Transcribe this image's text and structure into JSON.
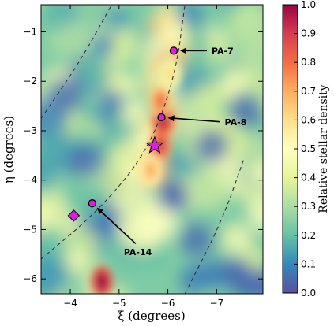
{
  "chart_data": {
    "type": "heatmap",
    "xlabel": "ξ (degrees)",
    "ylabel": "η (degrees)",
    "xlim": [
      -3.4,
      -7.95
    ],
    "ylim": [
      -6.3,
      -0.45
    ],
    "xticks": [
      -4,
      -5,
      -6,
      -7
    ],
    "yticks": [
      -1,
      -2,
      -3,
      -4,
      -5,
      -6
    ],
    "colorbar": {
      "label": "Relative stellar density",
      "range": [
        0.0,
        1.0
      ],
      "ticks": [
        0.0,
        0.1,
        0.2,
        0.3,
        0.4,
        0.5,
        0.6,
        0.7,
        0.8,
        0.9,
        1.0
      ],
      "colormap": "Spectral_r",
      "colors": [
        "#5e4fa2",
        "#3288bd",
        "#66c2a5",
        "#abdda4",
        "#e6f598",
        "#ffffbf",
        "#fee08b",
        "#fdae61",
        "#f46d43",
        "#d53e4f",
        "#9e0142"
      ]
    },
    "density_features": [
      {
        "xi": -5.85,
        "eta": -3.3,
        "value": 0.9
      },
      {
        "xi": -5.9,
        "eta": -2.8,
        "value": 0.95
      },
      {
        "xi": -5.85,
        "eta": -2.4,
        "value": 0.8
      },
      {
        "xi": -5.65,
        "eta": -3.8,
        "value": 0.7
      },
      {
        "xi": -4.65,
        "eta": -6.05,
        "value": 1.0
      },
      {
        "xi": -6.05,
        "eta": -1.85,
        "value": 0.6
      }
    ],
    "markers": [
      {
        "label": "PA-7",
        "type": "circle",
        "xi": -6.12,
        "eta": -1.38,
        "color": "#e41ae4"
      },
      {
        "label": "PA-8",
        "type": "circle",
        "xi": -5.87,
        "eta": -2.73,
        "color": "#e41ae4"
      },
      {
        "label": "PA-14",
        "type": "circle",
        "xi": -4.45,
        "eta": -4.47,
        "color": "#e41ae4"
      },
      {
        "type": "star",
        "xi": -5.73,
        "eta": -3.3,
        "color": "#e41ae4"
      },
      {
        "type": "diamond",
        "xi": -4.07,
        "eta": -4.72,
        "color": "#e41ae4"
      }
    ],
    "annotations": [
      {
        "text": "PA-7",
        "marker": "PA-7"
      },
      {
        "text": "PA-8",
        "marker": "PA-8"
      },
      {
        "text": "PA-14",
        "marker": "PA-14"
      }
    ],
    "dashed_arcs": [
      [
        [
          -3.4,
          -2.75
        ],
        [
          -4.2,
          -1.6
        ],
        [
          -4.85,
          -0.45
        ]
      ],
      [
        [
          -3.4,
          -5.6
        ],
        [
          -4.6,
          -4.6
        ],
        [
          -5.6,
          -3.4
        ],
        [
          -6.15,
          -1.9
        ],
        [
          -6.35,
          -0.45
        ]
      ],
      [
        [
          -6.35,
          -6.3
        ],
        [
          -7.1,
          -4.85
        ],
        [
          -7.55,
          -3.6
        ]
      ]
    ]
  }
}
